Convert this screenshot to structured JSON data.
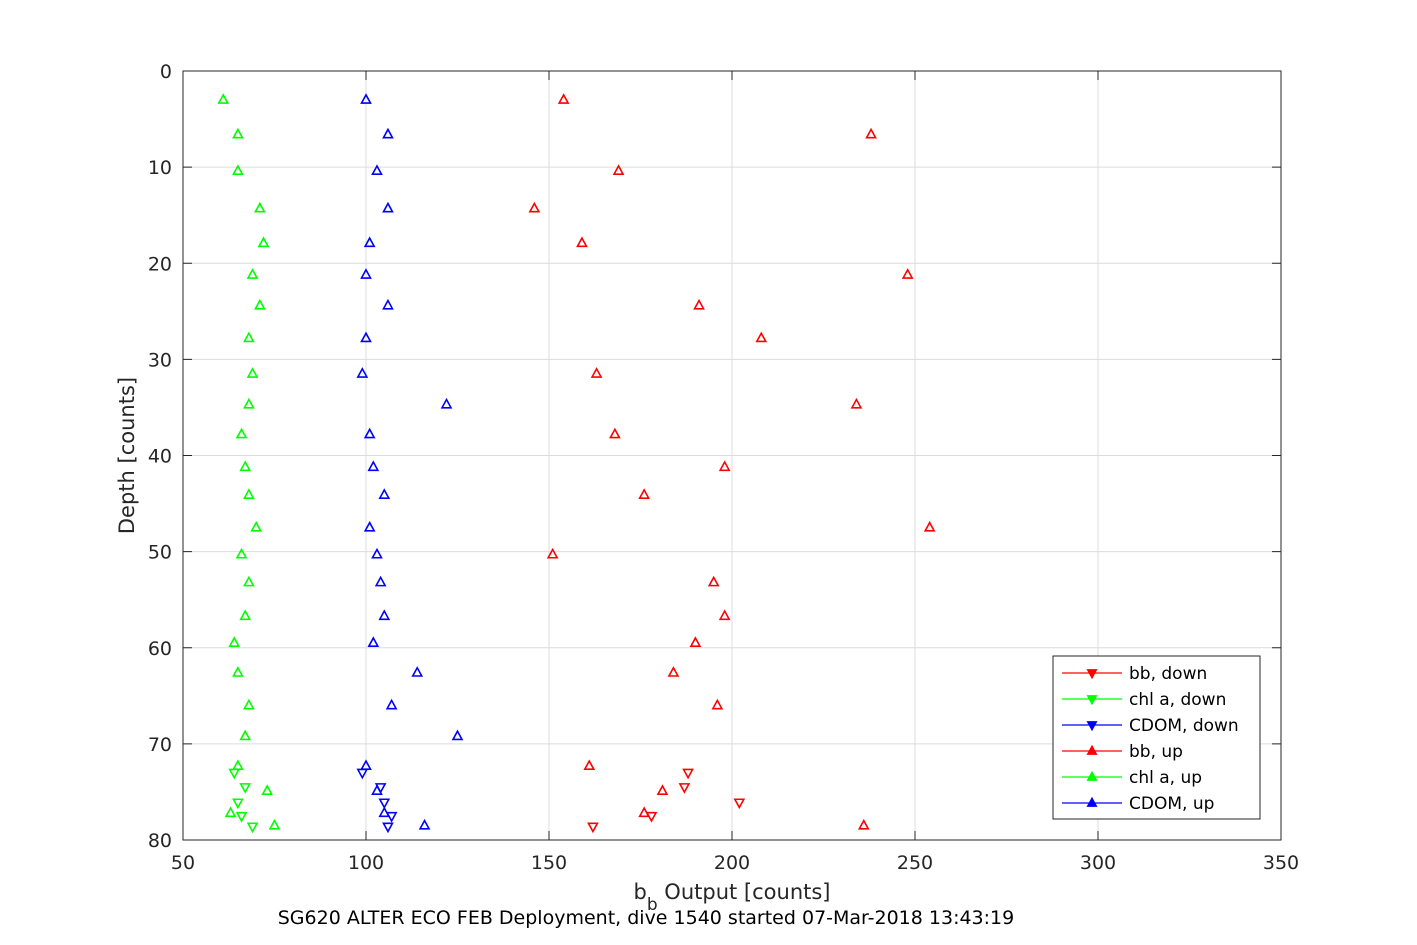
{
  "chart_data": {
    "type": "scatter",
    "title": "",
    "xlabel_main": "b",
    "xlabel_sub": "b",
    "xlabel_rest": " Output [counts]",
    "ylabel": "Depth [counts]",
    "caption": "SG620 ALTER ECO FEB Deployment, dive 1540 started 07-Mar-2018 13:43:19",
    "xlim": [
      50,
      350
    ],
    "ylim": [
      0,
      80
    ],
    "y_reversed": true,
    "grid": true,
    "legend_position": "bottom-right",
    "xticks": [
      "50",
      "100",
      "150",
      "200",
      "250",
      "300",
      "350"
    ],
    "yticks": [
      "0",
      "10",
      "20",
      "30",
      "40",
      "50",
      "60",
      "70",
      "80"
    ],
    "colors": {
      "red": "#ff0000",
      "green": "#00ff00",
      "blue": "#0000ff"
    },
    "series": [
      {
        "name": "bb, down",
        "color": "#ff0000",
        "marker": "triangle-down",
        "x": [
          188,
          187,
          202,
          178,
          162
        ],
        "y": [
          73.0,
          74.5,
          76.1,
          77.5,
          78.6
        ]
      },
      {
        "name": "chl a, down",
        "color": "#00ff00",
        "marker": "triangle-down",
        "x": [
          64,
          67,
          65,
          66,
          69
        ],
        "y": [
          73.0,
          74.5,
          76.1,
          77.5,
          78.6
        ]
      },
      {
        "name": "CDOM, down",
        "color": "#0000ff",
        "marker": "triangle-down",
        "x": [
          99,
          104,
          105,
          107,
          106
        ],
        "y": [
          73.0,
          74.5,
          76.1,
          77.5,
          78.6
        ]
      },
      {
        "name": "bb, up",
        "color": "#ff0000",
        "marker": "triangle-up",
        "x": [
          154,
          238,
          169,
          146,
          159,
          248,
          191,
          208,
          163,
          234,
          168,
          198,
          176,
          254,
          151,
          195,
          198,
          190,
          184,
          196,
          161,
          181,
          176,
          236
        ],
        "y": [
          3.0,
          6.6,
          10.4,
          14.3,
          17.9,
          21.2,
          24.4,
          27.8,
          31.5,
          34.7,
          37.8,
          41.2,
          44.1,
          47.5,
          50.3,
          53.2,
          56.7,
          59.5,
          62.6,
          66.0,
          72.3,
          74.9,
          77.2,
          78.5
        ]
      },
      {
        "name": "chl a, up",
        "color": "#00ff00",
        "marker": "triangle-up",
        "x": [
          61,
          65,
          65,
          71,
          72,
          69,
          71,
          68,
          69,
          68,
          66,
          67,
          68,
          70,
          66,
          68,
          67,
          64,
          65,
          68,
          67,
          65,
          73,
          63,
          75
        ],
        "y": [
          3.0,
          6.6,
          10.4,
          14.3,
          17.9,
          21.2,
          24.4,
          27.8,
          31.5,
          34.7,
          37.8,
          41.2,
          44.1,
          47.5,
          50.3,
          53.2,
          56.7,
          59.5,
          62.6,
          66.0,
          69.2,
          72.3,
          74.9,
          77.2,
          78.5
        ]
      },
      {
        "name": "CDOM, up",
        "color": "#0000ff",
        "marker": "triangle-up",
        "x": [
          100,
          106,
          103,
          106,
          101,
          100,
          106,
          100,
          99,
          122,
          101,
          102,
          105,
          101,
          103,
          104,
          105,
          102,
          114,
          107,
          125,
          100,
          103,
          105,
          116
        ],
        "y": [
          3.0,
          6.6,
          10.4,
          14.3,
          17.9,
          21.2,
          24.4,
          27.8,
          31.5,
          34.7,
          37.8,
          41.2,
          44.1,
          47.5,
          50.3,
          53.2,
          56.7,
          59.5,
          62.6,
          66.0,
          69.2,
          72.3,
          74.9,
          77.2,
          78.5
        ]
      }
    ]
  }
}
